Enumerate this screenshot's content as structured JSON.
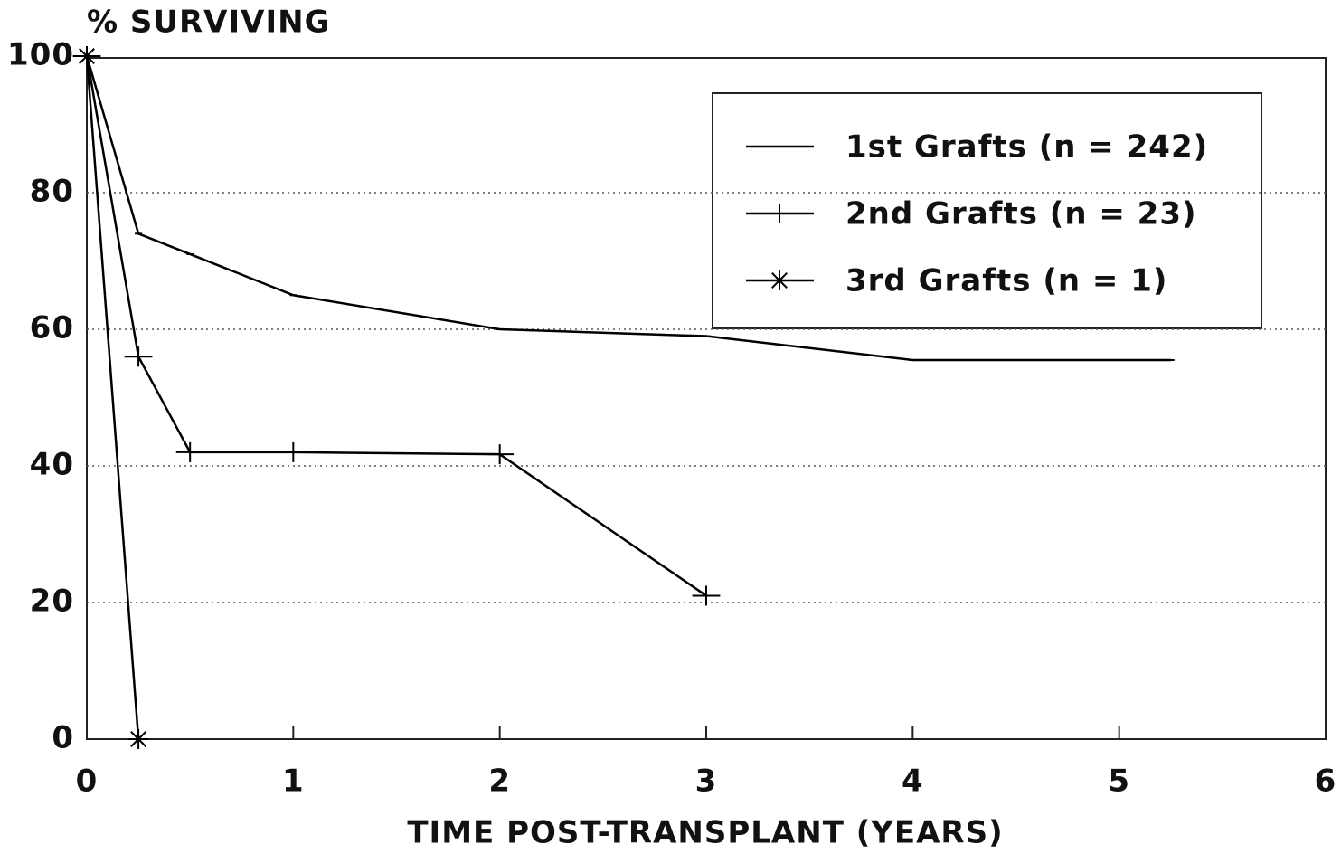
{
  "chart_data": {
    "type": "line",
    "title": "% SURVIVING",
    "xlabel": "TIME POST-TRANSPLANT (YEARS)",
    "xlim": [
      0,
      6
    ],
    "xticks": [
      0,
      1,
      2,
      3,
      4,
      5,
      6
    ],
    "ylim": [
      0,
      100
    ],
    "yticks": [
      0,
      20,
      40,
      60,
      80,
      100
    ],
    "grid": true,
    "legend": "upper right",
    "series": [
      {
        "name": "1st Grafts (n = 242)",
        "color": "#000000",
        "marker": "dash",
        "x": [
          0,
          0.25,
          0.5,
          1,
          2,
          3,
          4,
          5,
          5.25
        ],
        "values": [
          100,
          74,
          71,
          65,
          60,
          59,
          55.5,
          55.5,
          55.5
        ]
      },
      {
        "name": "2nd Grafts (n = 23)",
        "color": "#000000",
        "marker": "plus",
        "x": [
          0,
          0.25,
          0.5,
          1,
          2,
          3
        ],
        "values": [
          100,
          56,
          42,
          42,
          41.7,
          21
        ]
      },
      {
        "name": "3rd Grafts (n = 1)",
        "color": "#000000",
        "marker": "asterisk",
        "x": [
          0,
          0.25
        ],
        "values": [
          100,
          0
        ]
      }
    ]
  }
}
